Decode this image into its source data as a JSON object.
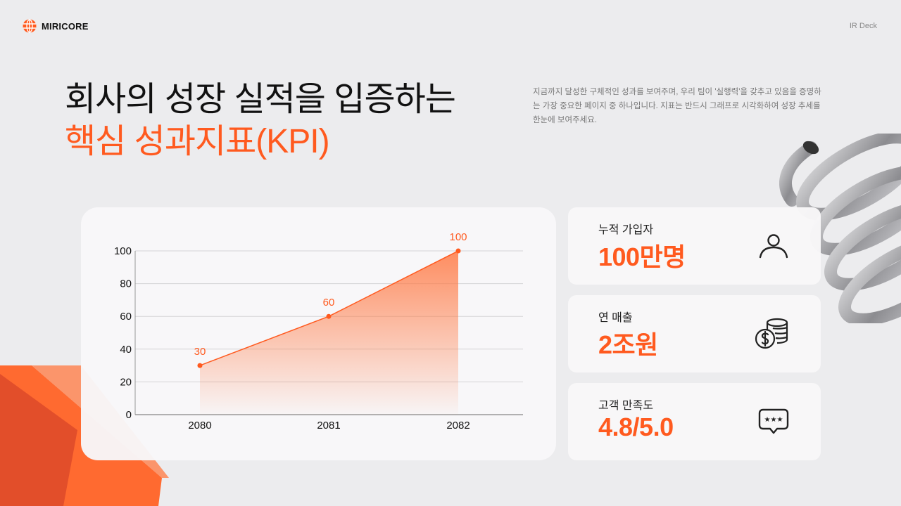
{
  "header": {
    "brand": "MIRICORE",
    "brand_icon": "globe-icon",
    "deck_label": "IR Deck"
  },
  "title": {
    "line1": "회사의 성장 실적을 입증하는",
    "line2": "핵심 성과지표(KPI)"
  },
  "description": "지금까지 달성한 구체적인 성과를 보여주며, 우리 팀이 '실행력'을 갖추고 있음을 증명하는 가장 중요한 페이지 중 하나입니다. 지표는 반드시 그래프로 시각화하여 성장 추세를 한눈에 보여주세요.",
  "colors": {
    "accent": "#ff5a1f",
    "background": "#ececee",
    "card": "#f8f7f9",
    "text": "#111111"
  },
  "kpis": [
    {
      "label": "누적 가입자",
      "value": "100만명",
      "icon": "user-icon"
    },
    {
      "label": "연 매출",
      "value": "2조원",
      "icon": "coins-dollar-icon"
    },
    {
      "label": "고객 만족도",
      "value": "4.8/5.0",
      "icon": "rating-chat-icon"
    }
  ],
  "chart_data": {
    "type": "area",
    "categories": [
      "2080",
      "2081",
      "2082"
    ],
    "values": [
      30,
      60,
      100
    ],
    "data_labels": [
      "30",
      "60",
      "100"
    ],
    "title": "",
    "xlabel": "",
    "ylabel": "",
    "ylim": [
      0,
      100
    ],
    "yticks": [
      "0",
      "20",
      "40",
      "60",
      "80",
      "100"
    ],
    "grid": true,
    "legend": null,
    "color": "#ff5a1f"
  }
}
